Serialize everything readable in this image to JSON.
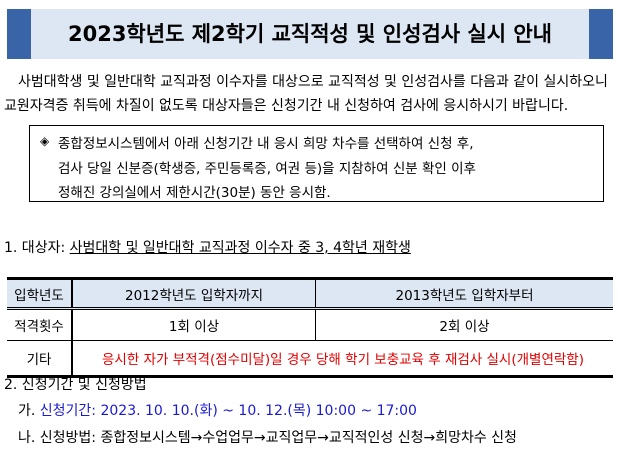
{
  "title": "2023학년도 제2학기 교직적성 및 인성검사 실시 안내",
  "intro": [
    "사범대학생 및 일반대학 교직과정 이수자를 대상으로 교직적성 및 인성검사를 다음과 같이 실시하오니",
    "교원자격증 취득에 차질이 없도록 대상자들은 신청기간 내 신청하여 검사에 응시하시기 바랍니다."
  ],
  "notice": {
    "bullet": "◈",
    "lines": [
      "종합정보시스템에서 아래 신청기간 내 응시 희망 차수를 선택하여 신청 후,",
      "검사 당일 신분증(학생증, 주민등록증, 여권 등)을 지참하여 신분 확인 이후",
      "정해진 강의실에서 제한시간(30분) 동안 응시함."
    ]
  },
  "section1": {
    "label": "1. 대상자: ",
    "value": "사범대학 및 일반대학 교직과정 이수자 중 3, 4학년 재학생"
  },
  "table": {
    "header": [
      "입학년도",
      "2012학년도 입학자까지",
      "2013학년도 입학자부터"
    ],
    "row1": [
      "적격횟수",
      "1회 이상",
      "2회 이상"
    ],
    "row2": [
      "기타",
      "응시한 자가 부적격(점수미달)일 경우 당해 학기 보충교육 후 재검사 실시(개별연락함)"
    ]
  },
  "section2": {
    "label": "2. 신청기간 및 신청방법",
    "a_prefix": "가. ",
    "a_text": "신청기간: 2023. 10. 10.(화) ~ 10. 12.(목) 10:00 ~ 17:00",
    "b_prefix": "나. ",
    "b_text": "신청방법: 종합정보시스템→수업업무→교직업무→교직적인성 신청→희망차수 신청"
  },
  "colors": {
    "banner_bar": "#3a64a8",
    "banner_bg": "#dde7f3",
    "red": "#e00000",
    "blue": "#1a1ad0"
  }
}
